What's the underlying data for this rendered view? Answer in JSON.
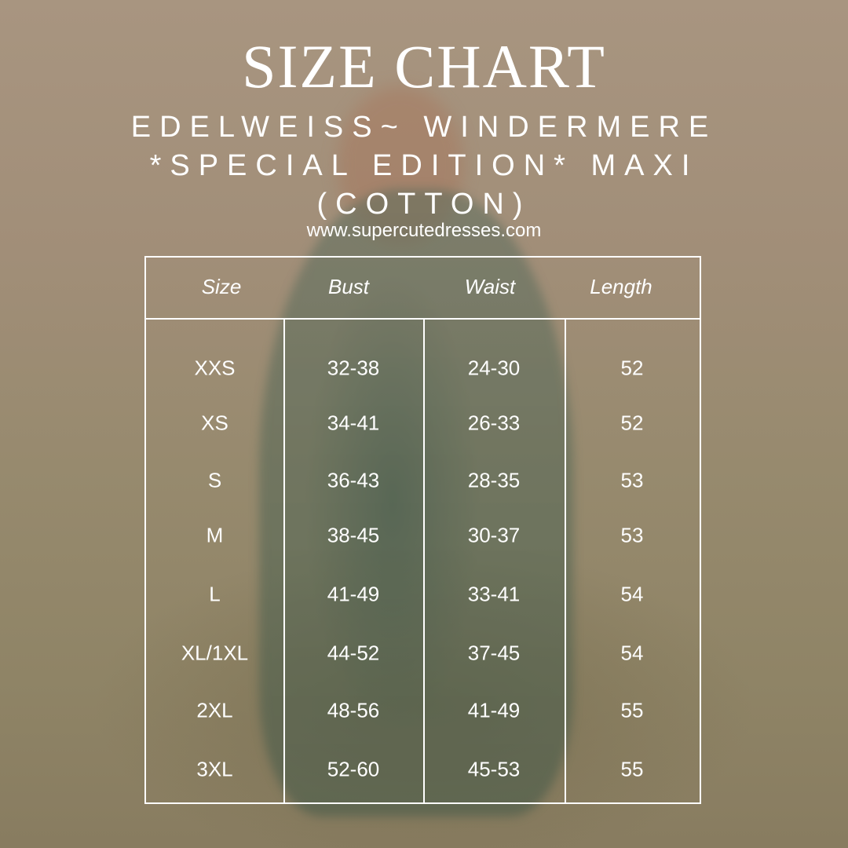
{
  "title": "SIZE CHART",
  "subtitle_lines": [
    "EDELWEISS~ WINDERMERE",
    "*SPECIAL EDITION* MAXI",
    "(COTTON)"
  ],
  "website": "www.supercutedresses.com",
  "table": {
    "headers": [
      "Size",
      "Bust",
      "Waist",
      "Length"
    ],
    "rows": [
      [
        "XXS",
        "32-38",
        "24-30",
        "52"
      ],
      [
        "XS",
        "34-41",
        "26-33",
        "52"
      ],
      [
        "S",
        "36-43",
        "28-35",
        "53"
      ],
      [
        "M",
        "38-45",
        "30-37",
        "53"
      ],
      [
        "L",
        "41-49",
        "33-41",
        "54"
      ],
      [
        "XL/1XL",
        "44-52",
        "37-45",
        "54"
      ],
      [
        "2XL",
        "48-56",
        "41-49",
        "55"
      ],
      [
        "3XL",
        "52-60",
        "45-53",
        "55"
      ]
    ]
  }
}
